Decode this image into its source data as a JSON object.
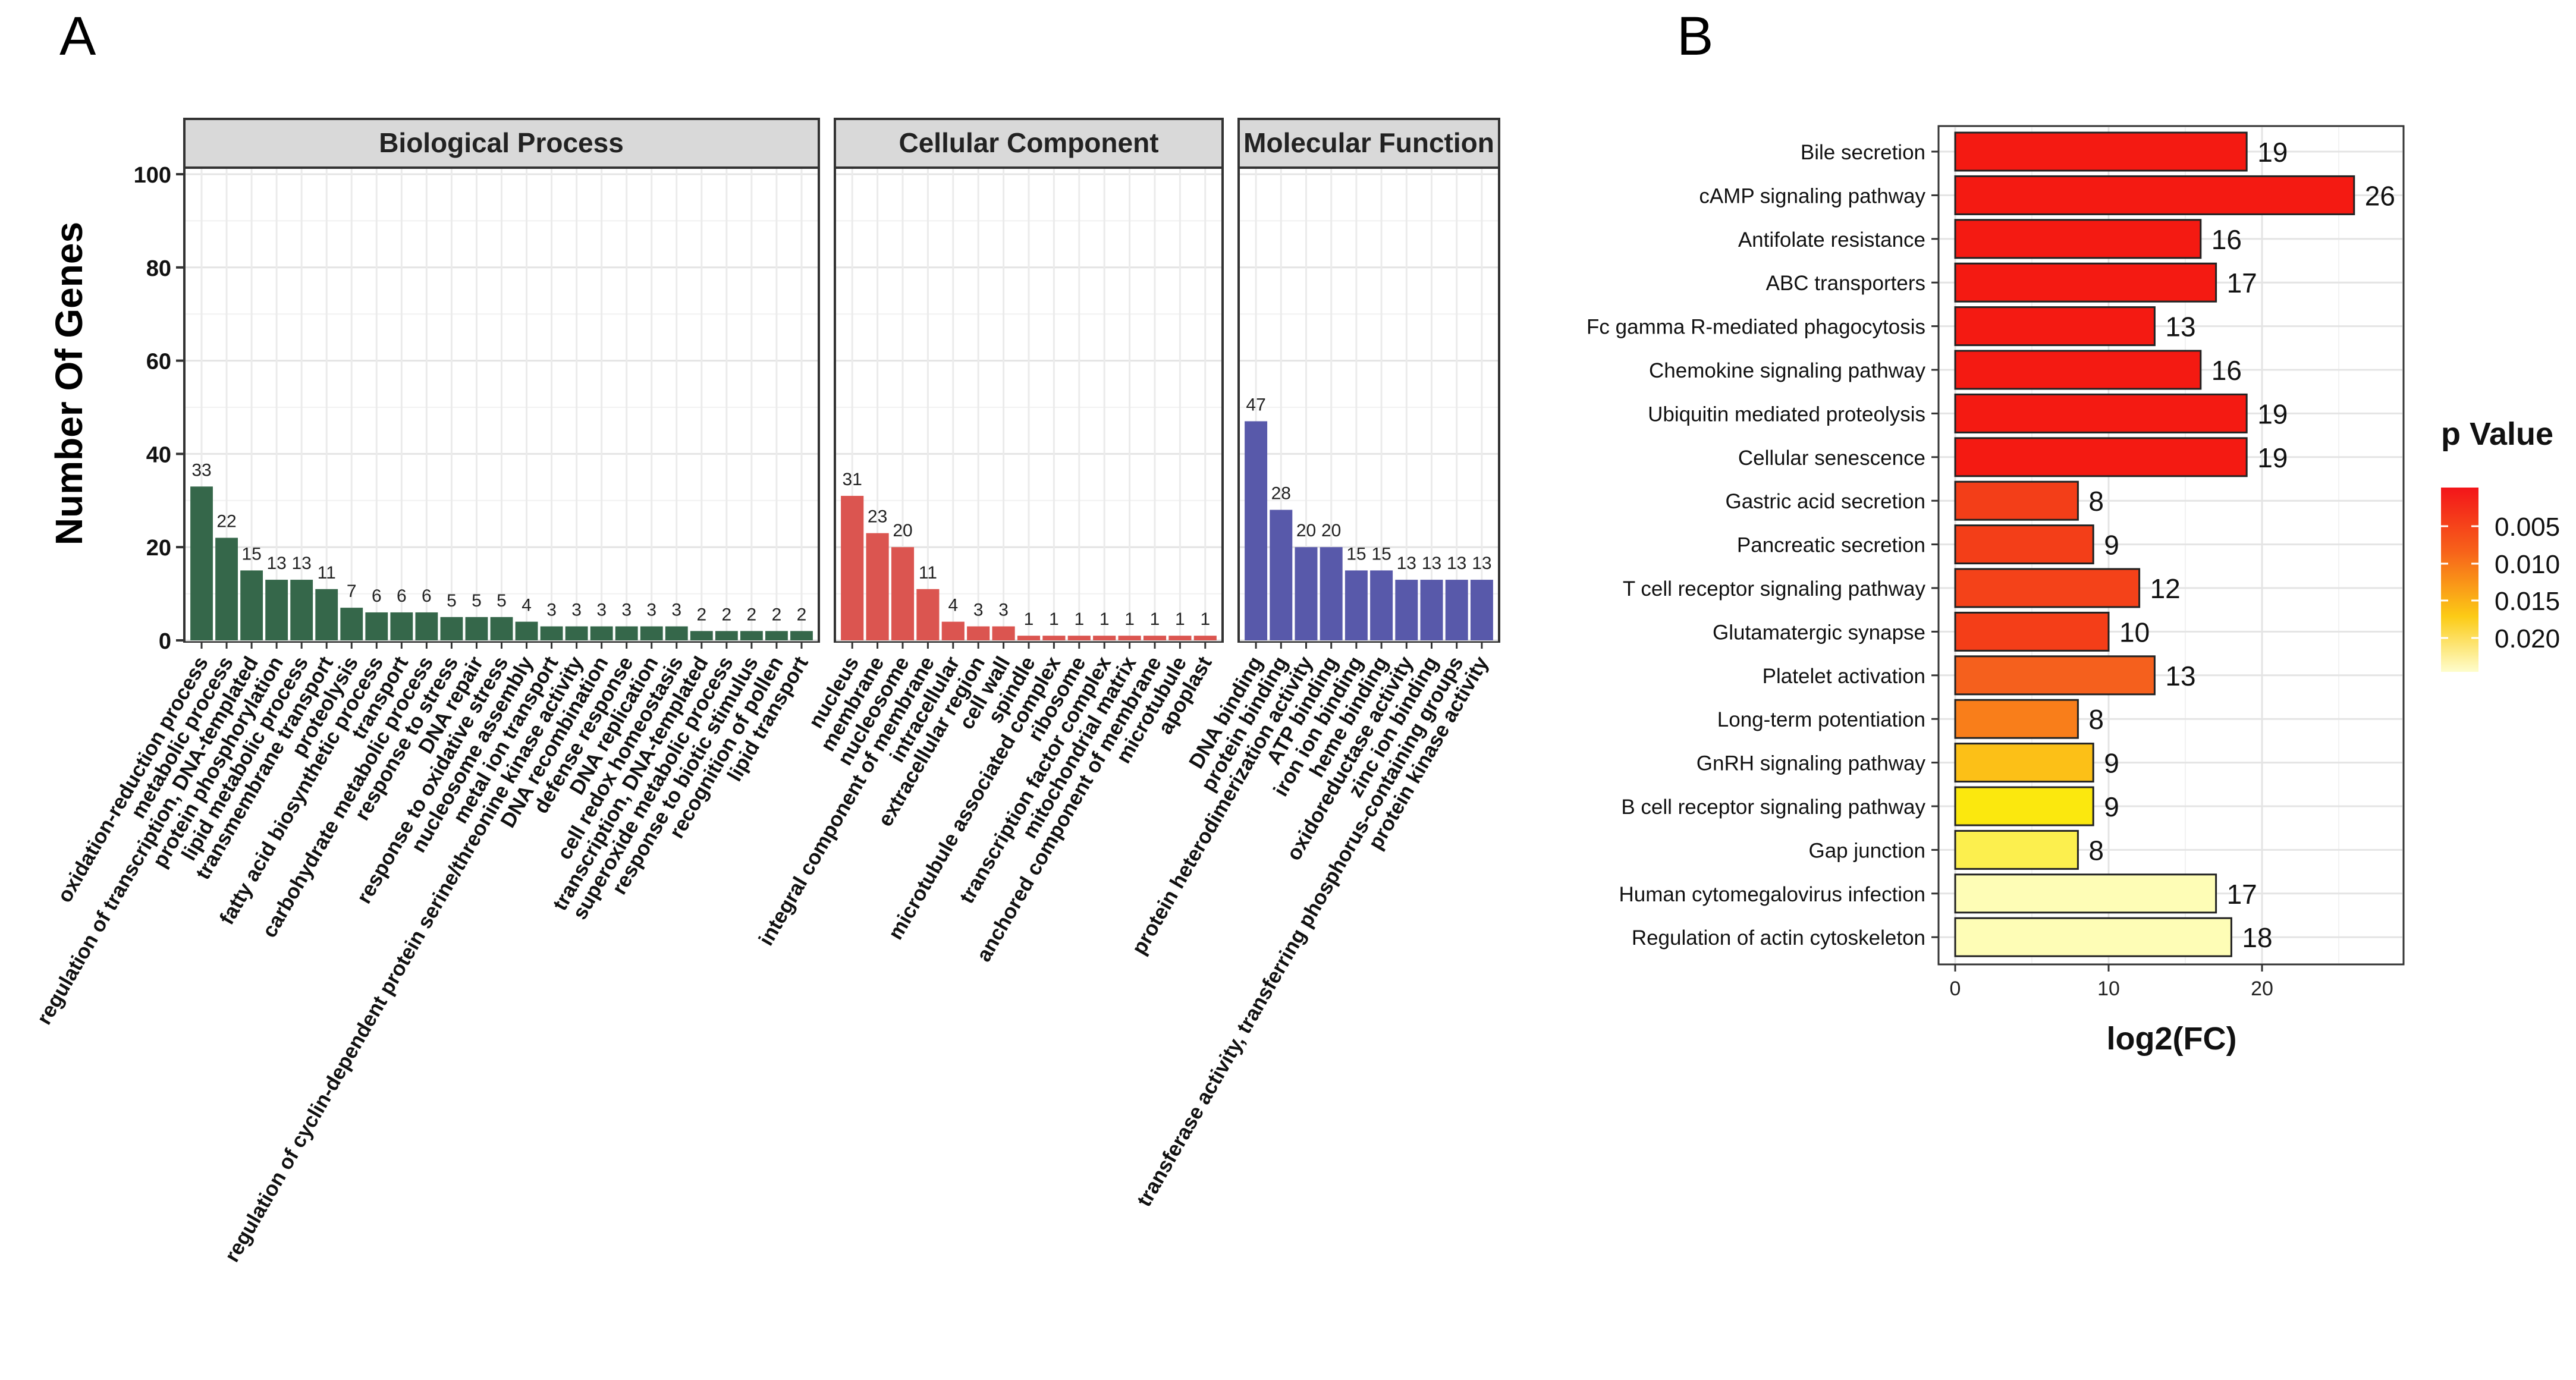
{
  "panels": {
    "a_letter": "A",
    "b_letter": "B"
  },
  "chart_data": [
    {
      "type": "bar",
      "panel": "A",
      "ylabel": "Number Of Genes",
      "ylim": [
        0,
        100
      ],
      "yticks": [
        0,
        20,
        40,
        60,
        80,
        100
      ],
      "grid": true,
      "facets": [
        {
          "title": "Biological Process",
          "color": "#35674A",
          "categories": [
            "oxidation-reduction process",
            "metabolic process",
            "regulation of transcription, DNA-templated",
            "protein phosphorylation",
            "lipid metabolic process",
            "transmembrane transport",
            "proteolysis",
            "fatty acid biosynthetic process",
            "transport",
            "carbohydrate metabolic process",
            "response to stress",
            "DNA repair",
            "response to oxidative stress",
            "nucleosome assembly",
            "metal ion transport",
            "regulation of cyclin-dependent protein serine/threonine kinase activity",
            "DNA recombination",
            "defense response",
            "DNA replication",
            "cell redox homeostasis",
            "transcription, DNA-templated",
            "superoxide metabolic process",
            "response to biotic stimulus",
            "recognition of pollen",
            "lipid transport"
          ],
          "values": [
            33,
            22,
            15,
            13,
            13,
            11,
            7,
            6,
            6,
            6,
            5,
            5,
            5,
            4,
            3,
            3,
            3,
            3,
            3,
            3,
            2,
            2,
            2,
            2,
            2
          ]
        },
        {
          "title": "Cellular Component",
          "color": "#DB5550",
          "categories": [
            "nucleus",
            "membrane",
            "nucleosome",
            "integral component of membrane",
            "intracellular",
            "extracellular region",
            "cell wall",
            "spindle",
            "microtubule associated complex",
            "ribosome",
            "transcription factor complex",
            "mitochondrial matrix",
            "anchored component of membrane",
            "microtubule",
            "apoplast"
          ],
          "values": [
            31,
            23,
            20,
            11,
            4,
            3,
            3,
            1,
            1,
            1,
            1,
            1,
            1,
            1,
            1
          ]
        },
        {
          "title": "Molecular Function",
          "color": "#5859AA",
          "categories": [
            "DNA binding",
            "protein binding",
            "protein heterodimerization activity",
            "ATP binding",
            "iron ion binding",
            "heme binding",
            "oxidoreductase activity",
            "zinc ion binding",
            "transferase activity, transferring phosphorus-containing groups",
            "protein kinase activity"
          ],
          "values": [
            47,
            28,
            20,
            20,
            15,
            15,
            13,
            13,
            13,
            13
          ]
        }
      ]
    },
    {
      "type": "bar",
      "orientation": "horizontal",
      "panel": "B",
      "xlabel": "log2(FC)",
      "xticks": [
        0,
        10,
        20
      ],
      "xlim": [
        0,
        29.3
      ],
      "grid": true,
      "legend": {
        "title": "p Value",
        "ticks": [
          "0.005",
          "0.010",
          "0.015",
          "0.020"
        ],
        "placement": "right"
      },
      "categories": [
        "Bile secretion",
        "cAMP signaling pathway",
        "Antifolate resistance",
        "ABC transporters",
        "Fc gamma R-mediated phagocytosis",
        "Chemokine signaling pathway",
        "Ubiquitin mediated proteolysis",
        "Cellular senescence",
        "Gastric acid secretion",
        "Pancreatic secretion",
        "T cell receptor signaling pathway",
        "Glutamatergic synapse",
        "Platelet activation",
        "Long-term potentiation",
        "GnRH signaling pathway",
        "B cell receptor signaling pathway",
        "Gap junction",
        "Human cytomegalovirus infection",
        "Regulation of actin cytoskeleton"
      ],
      "values": [
        19,
        26,
        16,
        17,
        13,
        16,
        19,
        19,
        8,
        9,
        12,
        10,
        13,
        8,
        9,
        9,
        8,
        17,
        18
      ],
      "colors": [
        "#F41A12",
        "#F41A12",
        "#F41A12",
        "#F41A12",
        "#F41A12",
        "#F41A12",
        "#F41A12",
        "#F41A12",
        "#F33E18",
        "#F33E18",
        "#F44219",
        "#F43E18",
        "#F5601D",
        "#F97E1A",
        "#FCC017",
        "#FBE80E",
        "#FCEF4E",
        "#FEFDB6",
        "#FEFDB6"
      ]
    }
  ]
}
